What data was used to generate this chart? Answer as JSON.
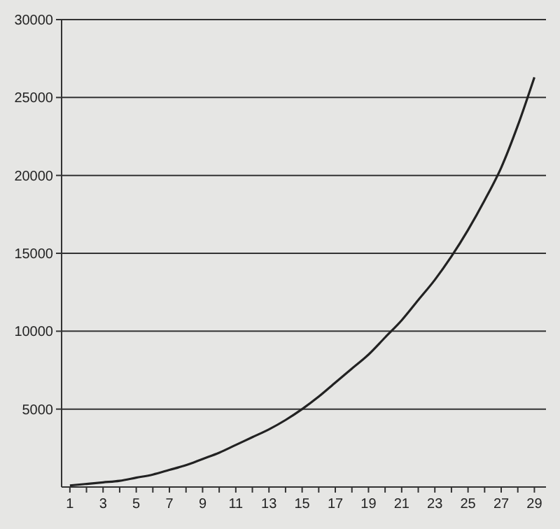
{
  "chart_data": {
    "type": "line",
    "x": [
      1,
      2,
      3,
      4,
      5,
      6,
      7,
      8,
      9,
      10,
      11,
      12,
      13,
      14,
      15,
      16,
      17,
      18,
      19,
      20,
      21,
      22,
      23,
      24,
      25,
      26,
      27,
      28,
      29
    ],
    "series": [
      {
        "color": "#222222",
        "values": [
          100,
          200,
          300,
          400,
          600,
          800,
          1100,
          1400,
          1800,
          2200,
          2700,
          3200,
          3700,
          4300,
          5000,
          5800,
          6700,
          7600,
          8500,
          9600,
          10700,
          12000,
          13300,
          14800,
          16500,
          18400,
          20500,
          23200,
          26300
        ]
      }
    ],
    "xlim": [
      0.5,
      29.7
    ],
    "xticks": [
      1,
      {
        "value": 2,
        "label": null
      },
      3,
      {
        "value": 4,
        "label": null
      },
      5,
      {
        "value": 6,
        "label": null
      },
      7,
      {
        "value": 8,
        "label": null
      },
      9,
      {
        "value": 10,
        "label": null
      },
      11,
      {
        "value": 12,
        "label": null
      },
      13,
      {
        "value": 14,
        "label": null
      },
      15,
      {
        "value": 16,
        "label": null
      },
      17,
      {
        "value": 18,
        "label": null
      },
      19,
      {
        "value": 20,
        "label": null
      },
      21,
      {
        "value": 22,
        "label": null
      },
      23,
      {
        "value": 24,
        "label": null
      },
      25,
      {
        "value": 26,
        "label": null
      },
      27,
      {
        "value": 28,
        "label": null
      },
      29
    ],
    "ylim": [
      0,
      30000
    ],
    "yticks": [
      5000,
      10000,
      15000,
      20000,
      25000,
      30000
    ],
    "grid": "y",
    "marker": "none",
    "line_style": "solid"
  }
}
